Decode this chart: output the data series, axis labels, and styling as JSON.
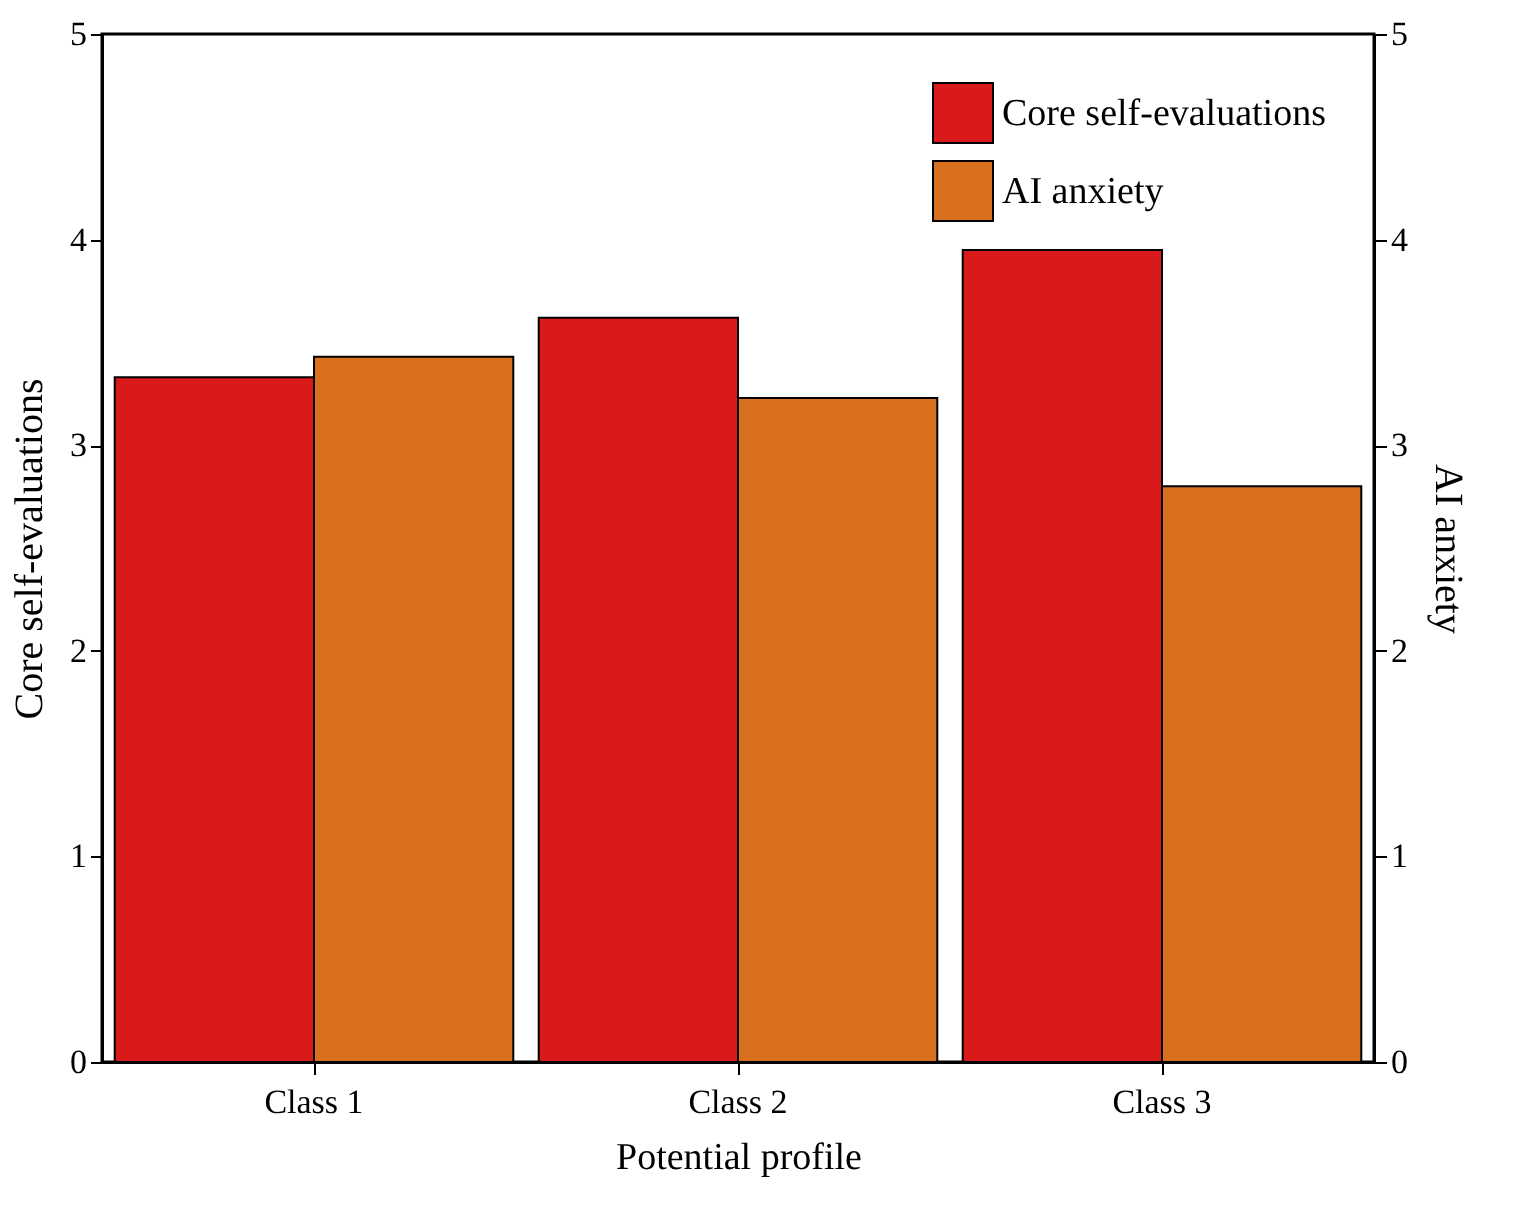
{
  "chart_data": {
    "type": "bar",
    "xlabel": "Potential profile",
    "ylabel": "Core self-evaluations",
    "y2label": "AI anxiety",
    "categories": [
      "Class 1",
      "Class 2",
      "Class 3"
    ],
    "series": [
      {
        "name": "Core self-evaluations",
        "color": "#d81a1a",
        "values": [
          3.33,
          3.62,
          3.95
        ]
      },
      {
        "name": "AI anxiety",
        "color": "#d8701e",
        "values": [
          3.43,
          3.23,
          2.8
        ],
        "axis": "y2"
      }
    ],
    "ylim": [
      0,
      5
    ],
    "yticks": [
      0,
      1,
      2,
      3,
      4,
      5
    ],
    "y2lim": [
      0,
      5
    ],
    "y2ticks": [
      0,
      1,
      2,
      3,
      4,
      5
    ],
    "grid": false,
    "legend": "top right"
  }
}
